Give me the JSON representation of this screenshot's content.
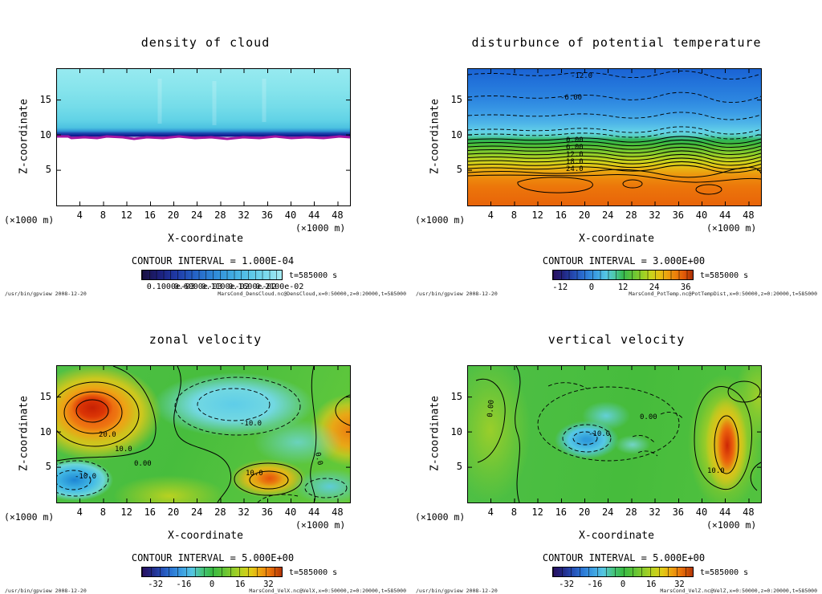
{
  "panels": [
    {
      "title": "density of cloud",
      "ylabel": "Z-coordinate",
      "xlabel": "X-coordinate",
      "y_unit": "(×1000 m)",
      "x_unit": "(×1000 m)",
      "y_ticks": [
        5,
        10,
        15
      ],
      "x_ticks": [
        4,
        8,
        12,
        16,
        20,
        24,
        28,
        32,
        36,
        40,
        44,
        48
      ],
      "contour_interval_label": "CONTOUR INTERVAL = 1.000E-04",
      "colorbar_ticks": [
        "0.1000e-03",
        "0.6000e-03",
        "0.1100e-02",
        "0.1600e-02",
        "0.2100e-02"
      ],
      "time_label": "t=585000 s",
      "footer_left": "/usr/bin/gpview  2008-12-20",
      "footer_right": "MarsCond_DensCloud.nc@DensCloud,x=0:50000,z=0:20000,t=585000",
      "contour_labels": []
    },
    {
      "title": "disturbunce of potential temperature",
      "ylabel": "Z-coordinate",
      "xlabel": "X-coordinate",
      "y_unit": "(×1000 m)",
      "x_unit": "(×1000 m)",
      "y_ticks": [
        5,
        10,
        15
      ],
      "x_ticks": [
        4,
        8,
        12,
        16,
        20,
        24,
        28,
        32,
        36,
        40,
        44,
        48
      ],
      "contour_interval_label": "CONTOUR INTERVAL = 3.000E+00",
      "colorbar_ticks": [
        -12,
        0,
        12,
        24,
        36
      ],
      "time_label": "t=585000 s",
      "footer_left": "/usr/bin/gpview  2008-12-20",
      "footer_right": "MarsCond_PotTemp.nc@PotTempDist,x=0:50000,z=0:20000,t=585000",
      "contour_labels": [
        "-12.0",
        "-6.00",
        "0.00",
        "6.00",
        "12.0",
        "18.0",
        "24.0"
      ]
    },
    {
      "title": "zonal velocity",
      "ylabel": "Z-coordinate",
      "xlabel": "X-coordinate",
      "y_unit": "(×1000 m)",
      "x_unit": "(×1000 m)",
      "y_ticks": [
        5,
        10,
        15
      ],
      "x_ticks": [
        4,
        8,
        12,
        16,
        20,
        24,
        28,
        32,
        36,
        40,
        44,
        48
      ],
      "contour_interval_label": "CONTOUR INTERVAL = 5.000E+00",
      "colorbar_ticks": [
        -32,
        -16,
        0,
        16,
        32
      ],
      "time_label": "t=585000 s",
      "footer_left": "/usr/bin/gpview  2008-12-20",
      "footer_right": "MarsCond_VelX.nc@VelX,x=0:50000,z=0:20000,t=585000",
      "contour_labels": [
        "20.0",
        "10.0",
        "0.00",
        "-10.0",
        "-10.0",
        "10.0",
        "0.0"
      ]
    },
    {
      "title": "vertical velocity",
      "ylabel": "Z-coordinate",
      "xlabel": "X-coordinate",
      "y_unit": "(×1000 m)",
      "x_unit": "(×1000 m)",
      "y_ticks": [
        5,
        10,
        15
      ],
      "x_ticks": [
        4,
        8,
        12,
        16,
        20,
        24,
        28,
        32,
        36,
        40,
        44,
        48
      ],
      "contour_interval_label": "CONTOUR INTERVAL = 5.000E+00",
      "colorbar_ticks": [
        -32,
        -16,
        0,
        16,
        32
      ],
      "time_label": "t=585000 s",
      "footer_left": "/usr/bin/gpview  2008-12-20",
      "footer_right": "MarsCond_VelZ.nc@VelZ,x=0:50000,z=0:20000,t=585000",
      "contour_labels": [
        "0.00",
        "-10.0",
        "0.00",
        "10.0"
      ]
    }
  ],
  "chart_data": [
    {
      "type": "contour",
      "title": "density of cloud",
      "xlabel": "X-coordinate",
      "ylabel": "Z-coordinate",
      "axis_units": "(×1000 m)",
      "xlim": [
        0,
        50
      ],
      "ylim": [
        0,
        20
      ],
      "x_ticks": [
        4,
        8,
        12,
        16,
        20,
        24,
        28,
        32,
        36,
        40,
        44,
        48
      ],
      "y_ticks": [
        5,
        10,
        15
      ],
      "contour_interval": 0.0001,
      "colorbar_labels": [
        "0.1000e-03",
        "0.6000e-03",
        "0.1100e-02",
        "0.1600e-02",
        "0.2100e-02"
      ],
      "time": "t=585000 s",
      "source": "MarsCond_DensCloud.nc@DensCloud,x=0:50000,z=0:20000,t=585000",
      "features": [
        "uniform cyan cloud layer of low density filling z = 11 to 20 km at all x",
        "density increases downward to a dark-blue maximum band at z = 10 to 11 km",
        "thin magenta stripe marking cloud base near z = 10 km",
        "white (zero density) everywhere below z = 10 km"
      ]
    },
    {
      "type": "contour",
      "title": "disturbunce of potential temperature",
      "xlabel": "X-coordinate",
      "ylabel": "Z-coordinate",
      "axis_units": "(×1000 m)",
      "xlim": [
        0,
        50
      ],
      "ylim": [
        0,
        20
      ],
      "x_ticks": [
        4,
        8,
        12,
        16,
        20,
        24,
        28,
        32,
        36,
        40,
        44,
        48
      ],
      "y_ticks": [
        5,
        10,
        15
      ],
      "contour_interval": 3.0,
      "colorbar_ticks": [
        -12,
        0,
        12,
        24,
        36
      ],
      "labeled_contours": [
        -12.0,
        -6.0,
        0.0,
        6.0,
        12.0,
        18.0,
        24.0
      ],
      "time": "t=585000 s",
      "source": "MarsCond_PotTemp.nc@PotTempDist,x=0:50000,z=0:20000,t=585000",
      "features": [
        "negative disturbance (blue, about -12 to -6, dashed contours) in upper region z = 12 to 20 km",
        "near-zero values (cyan) around z = 10 km",
        "tightly packed positive contours 0 to 24 between z = 9 and z = 4 km (green to yellow to orange)",
        "strong positive disturbance (orange/red, above 24) below z = 4 km with closed contour pockets"
      ]
    },
    {
      "type": "contour",
      "title": "zonal velocity",
      "xlabel": "X-coordinate",
      "ylabel": "Z-coordinate",
      "axis_units": "(×1000 m)",
      "xlim": [
        0,
        50
      ],
      "ylim": [
        0,
        20
      ],
      "x_ticks": [
        4,
        8,
        12,
        16,
        20,
        24,
        28,
        32,
        36,
        40,
        44,
        48
      ],
      "y_ticks": [
        5,
        10,
        15
      ],
      "contour_interval": 5.0,
      "colorbar_ticks": [
        -32,
        -16,
        0,
        16,
        32
      ],
      "labeled_contours": [
        20.0,
        10.0,
        0.0,
        -10.0
      ],
      "time": "t=585000 s",
      "source": "MarsCond_VelX.nc@VelX,x=0:50000,z=0:20000,t=585000",
      "features": [
        "strong positive jet core (red/orange, above 20) centered near x = 6-10, z = 11-14",
        "negative pocket (cyan/blue, below -10, dashed contours) near x = 5-10, z = 1-3",
        "broad negative region (cyan, about -10, dashed) across upper middle x = 20-35, z = 12-17",
        "positive cell (orange/yellow, 10-20) near x = 34-38, z = 2-4",
        "positive band (orange) along the right edge near z = 10-14",
        "green near-zero background elsewhere"
      ]
    },
    {
      "type": "contour",
      "title": "vertical velocity",
      "xlabel": "X-coordinate",
      "ylabel": "Z-coordinate",
      "axis_units": "(×1000 m)",
      "xlim": [
        0,
        50
      ],
      "ylim": [
        0,
        20
      ],
      "x_ticks": [
        4,
        8,
        12,
        16,
        20,
        24,
        28,
        32,
        36,
        40,
        44,
        48
      ],
      "y_ticks": [
        5,
        10,
        15
      ],
      "contour_interval": 5.0,
      "colorbar_ticks": [
        -32,
        -16,
        0,
        16,
        32
      ],
      "labeled_contours": [
        0.0,
        -10.0,
        10.0
      ],
      "time": "t=585000 s",
      "source": "MarsCond_VelZ.nc@VelZ,x=0:50000,z=0:20000,t=585000",
      "features": [
        "mostly near-zero (green) field with dashed zero contours looping through the interior",
        "downdraft pockets (cyan/blue, about -10) near x = 16-22, z = 7-10",
        "narrow strong updraft (orange/red, above 10) near x = 44, z = 4-10 enclosed by black contours",
        "light yellow-green band near the left edge around x = 3-6"
      ]
    }
  ]
}
